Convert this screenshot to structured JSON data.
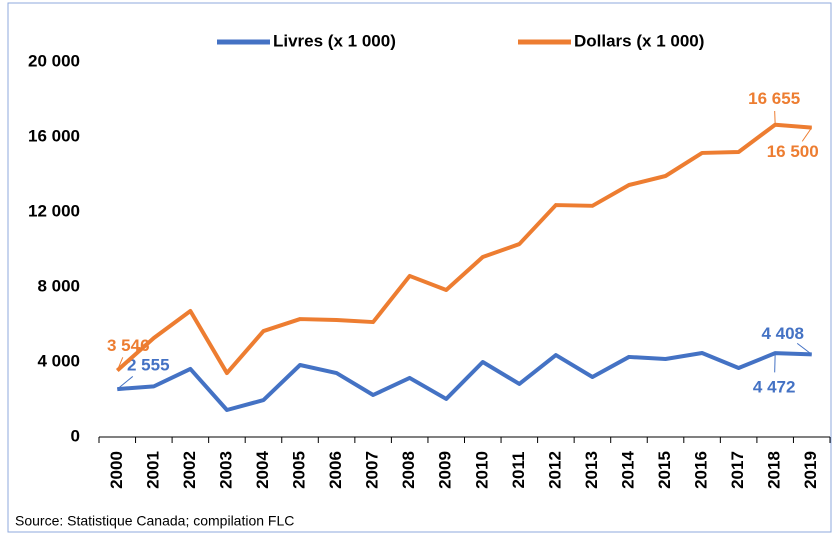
{
  "chart_data": {
    "type": "line",
    "categories": [
      "2000",
      "2001",
      "2002",
      "2003",
      "2004",
      "2005",
      "2006",
      "2007",
      "2008",
      "2009",
      "2010",
      "2011",
      "2012",
      "2013",
      "2014",
      "2015",
      "2016",
      "2017",
      "2018",
      "2019"
    ],
    "series": [
      {
        "name": "Livres (x 1 000)",
        "color": "#4472c4",
        "values": [
          2555,
          2700,
          3630,
          1440,
          1970,
          3840,
          3410,
          2240,
          3150,
          2030,
          4000,
          2830,
          4370,
          3200,
          4270,
          4160,
          4480,
          3680,
          4472,
          4408
        ],
        "value_labels": [
          "2 555",
          null,
          null,
          null,
          null,
          null,
          null,
          null,
          null,
          null,
          null,
          null,
          null,
          null,
          null,
          null,
          null,
          null,
          "4 472",
          "4 408"
        ]
      },
      {
        "name": "Dollars (x 1 000)",
        "color": "#ed7d31",
        "values": [
          3546,
          5280,
          6720,
          3410,
          5650,
          6290,
          6240,
          6130,
          8590,
          7840,
          9600,
          10290,
          12370,
          12330,
          13440,
          13920,
          15150,
          15200,
          16655,
          16500
        ],
        "value_labels": [
          "3 546",
          null,
          null,
          null,
          null,
          null,
          null,
          null,
          null,
          null,
          null,
          null,
          null,
          null,
          null,
          null,
          null,
          null,
          "16 655",
          "16 500"
        ]
      }
    ],
    "ylim": [
      0,
      20000
    ],
    "yticks": [
      0,
      {
        "value": 4000,
        "label": "4 000"
      },
      {
        "value": 8000,
        "label": "8 000"
      },
      {
        "value": 12000,
        "label": "12 000"
      },
      {
        "value": 16000,
        "label": "16 000"
      },
      {
        "value": 20000,
        "label": "20 000"
      }
    ],
    "grid": false,
    "legend": "top",
    "source": "Source: Statistique Canada; compilation FLC"
  }
}
